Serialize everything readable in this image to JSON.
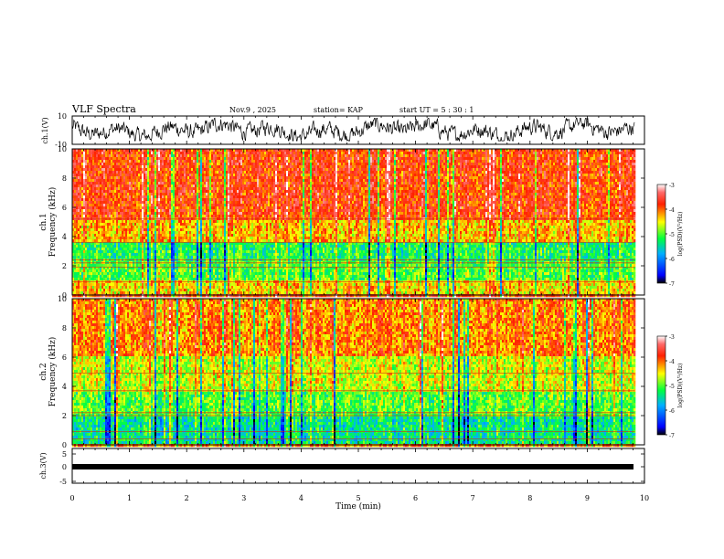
{
  "header": {
    "title": "VLF Spectra",
    "date": "Nov.9  , 2025",
    "station": "station= KAP",
    "start": "start  UT  =   5  : 30 : 1"
  },
  "chart_data": [
    {
      "type": "line",
      "name": "ch1-waveform",
      "ylabel": "ch.1(V)",
      "ylim": [
        -10,
        10
      ],
      "yticks": [
        "10",
        "-10"
      ],
      "x_range_min": [
        0,
        9.83
      ],
      "description": "noisy VLF waveform oscillating roughly between -7 and 8 V"
    },
    {
      "type": "heatmap",
      "name": "ch1-spectrogram",
      "ylabel": "ch.1\nFrequency  (kHz)",
      "ylim": [
        0,
        10
      ],
      "yticks": [
        "0",
        "2",
        "4",
        "6",
        "8",
        "10"
      ],
      "x_range_min": [
        0,
        9.83
      ],
      "colorbar": {
        "label": "log(PSD)(V²/Hz)",
        "range": [
          -7,
          -3
        ],
        "ticks": [
          "-3",
          "-4",
          "-5",
          "-6",
          "-7"
        ]
      },
      "bands_khz": [
        {
          "from": 0.0,
          "to": 1.0,
          "level": -4.4
        },
        {
          "from": 1.0,
          "to": 2.3,
          "level": -5.0
        },
        {
          "from": 2.3,
          "to": 3.6,
          "level": -5.2
        },
        {
          "from": 3.6,
          "to": 5.2,
          "level": -4.3
        },
        {
          "from": 5.2,
          "to": 10.0,
          "level": -3.8
        }
      ],
      "lines_khz": [
        0.9,
        1.9,
        2.2,
        2.4,
        3.6,
        5.2
      ]
    },
    {
      "type": "heatmap",
      "name": "ch2-spectrogram",
      "ylabel": "ch.2\nFrequency  (kHz)",
      "ylim": [
        0,
        10
      ],
      "yticks": [
        "0",
        "2",
        "4",
        "6",
        "8",
        "10"
      ],
      "x_range_min": [
        0,
        9.83
      ],
      "colorbar": {
        "label": "log(PSD)(V²/Hz)",
        "range": [
          -7,
          -3
        ],
        "ticks": [
          "-3",
          "-4",
          "-5",
          "-6",
          "-7"
        ]
      },
      "bands_khz": [
        {
          "from": 0.0,
          "to": 2.0,
          "level": -5.4
        },
        {
          "from": 2.0,
          "to": 3.6,
          "level": -5.0
        },
        {
          "from": 3.6,
          "to": 6.0,
          "level": -4.6
        },
        {
          "from": 6.0,
          "to": 10.0,
          "level": -4.1
        }
      ],
      "lines_khz": [
        0.4,
        0.9,
        2.0,
        2.2,
        3.7,
        4.9
      ]
    },
    {
      "type": "line",
      "name": "ch3-waveform",
      "ylabel": "ch.3(V)",
      "ylim": [
        -5,
        5
      ],
      "yticks": [
        "5",
        "0",
        "-5"
      ],
      "x_range_min": [
        0,
        9.83
      ],
      "description": "nearly constant thick trace at about 0 V"
    }
  ],
  "xaxis": {
    "label": "Time  (min)",
    "range": [
      0,
      10
    ],
    "ticks": [
      "0",
      "1",
      "2",
      "3",
      "4",
      "5",
      "6",
      "7",
      "8",
      "9",
      "10"
    ]
  }
}
